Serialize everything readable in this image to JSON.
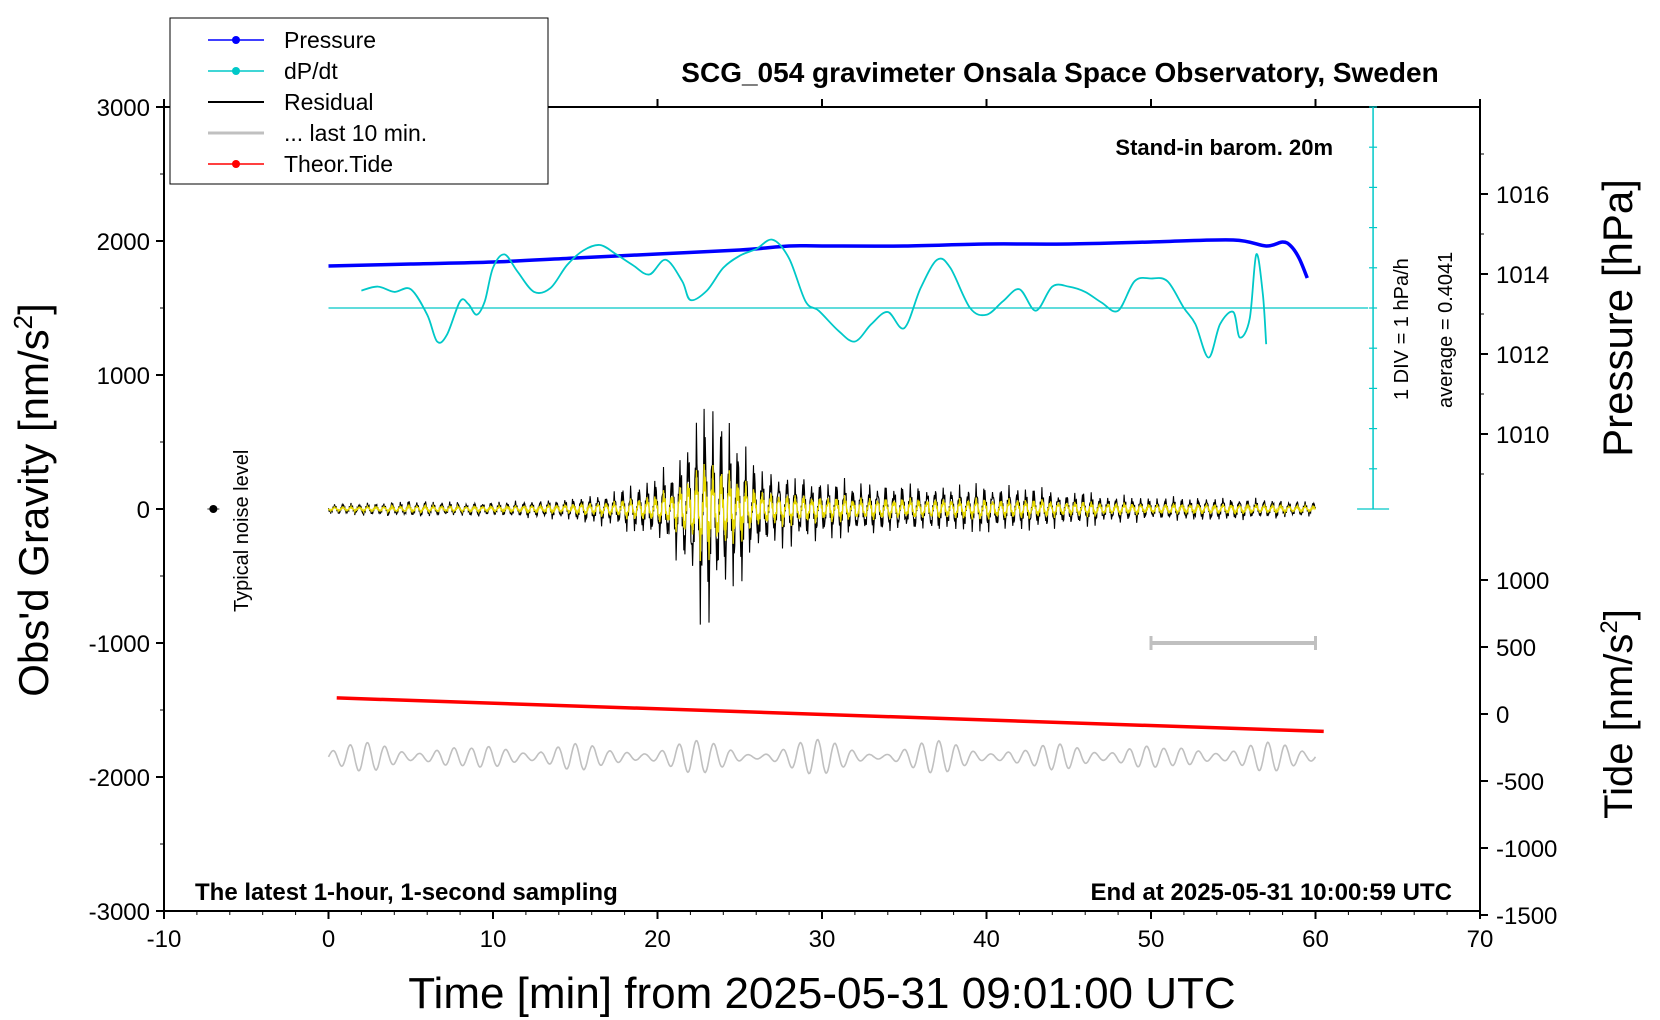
{
  "chart_data": {
    "type": "line",
    "title": "SCG_054 gravimeter Onsala Space Observatory, Sweden",
    "xlabel": "Time [min] from 2025-05-31 09:01:00 UTC",
    "ylabel_left": "Obs'd Gravity [nm/s",
    "ylabel_left_sup": "2",
    "ylabel_left_end": "]",
    "ylabel_right_pressure": "Pressure [hPa]",
    "ylabel_right_tide": "Tide [nm/s",
    "ylabel_right_tide_sup": "2",
    "ylabel_right_tide_end": "]",
    "xlim": [
      -10,
      70
    ],
    "ylim_left": [
      -3000,
      3000
    ],
    "ylim_right_pressure": [
      1008,
      1018
    ],
    "ylim_right_tide": [
      -1500,
      1500
    ],
    "xticks": [
      -10,
      0,
      10,
      20,
      30,
      40,
      50,
      60,
      70
    ],
    "xtick_labels": [
      "-10",
      "0",
      "10",
      "20",
      "30",
      "40",
      "50",
      "60",
      "70"
    ],
    "yticks_left": [
      3000,
      2000,
      1000,
      0,
      -1000,
      -2000,
      -3000
    ],
    "ytick_labels_left": [
      "3000",
      "2000",
      "1000",
      "0",
      "-1000",
      "-2000",
      "-3000"
    ],
    "yticks_pressure": [
      1016,
      1014,
      1012,
      1010
    ],
    "ytick_labels_pressure": [
      "1016",
      "1014",
      "1012",
      "1010"
    ],
    "yticks_tide": [
      1000,
      500,
      0,
      -500,
      -1000,
      -1500
    ],
    "ytick_labels_tide": [
      "1000",
      "500",
      "0",
      "-500",
      "-1000",
      "-1500"
    ],
    "legend": {
      "position": "top-left",
      "entries": [
        {
          "label": "Pressure",
          "color": "#0000ff",
          "marker": true
        },
        {
          "label": "dP/dt",
          "color": "#00c8c8",
          "marker": true
        },
        {
          "label": "Residual",
          "color": "#000000",
          "marker": false
        },
        {
          "label": "... last 10 min.",
          "color": "#c0c0c0",
          "marker": false
        },
        {
          "label": "Theor.Tide",
          "color": "#ff0000",
          "marker": true
        }
      ]
    },
    "annotations": {
      "barometer": "Stand-in barom. 20m",
      "sampling": "The latest 1-hour, 1-second sampling",
      "end_time": "End at 2025-05-31 10:00:59 UTC",
      "noise": "Typical noise level",
      "dpdt_scale": "1 DIV = 1 hPa/h",
      "dpdt_average": "average = 0.4041"
    },
    "colors": {
      "pressure": "#0000ff",
      "dpdt": "#00c8c8",
      "residual": "#000000",
      "overlay": "#e6d800",
      "last10": "#c0c0c0",
      "tide": "#ff0000"
    },
    "series": [
      {
        "name": "Pressure",
        "axis": "pressure",
        "x": [
          0,
          5,
          10,
          15,
          20,
          25,
          28,
          30,
          35,
          40,
          45,
          50,
          55,
          57,
          58,
          58.5,
          59,
          59.5
        ],
        "values": [
          1014.2,
          1014.25,
          1014.3,
          1014.4,
          1014.5,
          1014.6,
          1014.7,
          1014.7,
          1014.7,
          1014.75,
          1014.75,
          1014.8,
          1014.85,
          1014.7,
          1014.8,
          1014.7,
          1014.4,
          1013.9
        ]
      },
      {
        "name": "dP/dt",
        "axis": "gravity",
        "x": [
          2,
          3,
          4,
          5,
          6,
          6.6,
          7.2,
          8,
          8.5,
          9,
          9.5,
          10,
          10.7,
          11.5,
          12.5,
          13.5,
          14.5,
          15.5,
          16.5,
          17.5,
          18.5,
          19.5,
          20.5,
          21.5,
          22,
          23,
          24,
          25,
          26,
          27,
          28,
          29,
          29.8,
          31,
          32,
          33,
          34,
          35,
          36,
          37,
          37.8,
          39,
          40,
          41,
          42,
          43,
          44,
          45,
          46,
          47,
          48,
          49,
          50,
          51,
          52,
          52.7,
          53.5,
          54.2,
          55,
          55.4,
          56,
          56.4,
          56.8,
          57
        ],
        "values": [
          1630,
          1660,
          1620,
          1640,
          1450,
          1250,
          1300,
          1550,
          1530,
          1450,
          1550,
          1800,
          1900,
          1770,
          1620,
          1650,
          1820,
          1930,
          1970,
          1900,
          1820,
          1750,
          1860,
          1700,
          1560,
          1630,
          1800,
          1890,
          1940,
          2010,
          1870,
          1550,
          1480,
          1330,
          1250,
          1380,
          1470,
          1350,
          1650,
          1860,
          1800,
          1500,
          1450,
          1550,
          1640,
          1480,
          1660,
          1660,
          1620,
          1540,
          1480,
          1700,
          1720,
          1700,
          1500,
          1380,
          1130,
          1380,
          1470,
          1280,
          1420,
          1900,
          1600,
          1230
        ]
      },
      {
        "name": "Residual",
        "axis": "gravity",
        "amplitude_envelope": {
          "x": [
            0,
            5,
            10,
            15,
            19,
            21,
            22,
            22.8,
            23.2,
            24,
            25,
            26,
            28,
            30,
            35,
            40,
            45,
            50,
            55,
            60
          ],
          "values": [
            40,
            70,
            60,
            100,
            200,
            380,
            650,
            1000,
            900,
            700,
            600,
            400,
            300,
            250,
            200,
            200,
            150,
            100,
            100,
            60
          ]
        }
      },
      {
        "name": "... last 10 min.",
        "axis": "gravity",
        "note": "last 10 min trace shown offset around -1850",
        "offset": -1850,
        "amplitude": 150
      },
      {
        "name": "Theor.Tide",
        "axis": "tide",
        "x": [
          0.5,
          60.5
        ],
        "values": [
          120,
          -130
        ]
      }
    ],
    "noise_level": {
      "x": -7,
      "y": 0
    },
    "scale_bar": {
      "x_start": 50,
      "x_end": 60,
      "y": -1000
    }
  }
}
